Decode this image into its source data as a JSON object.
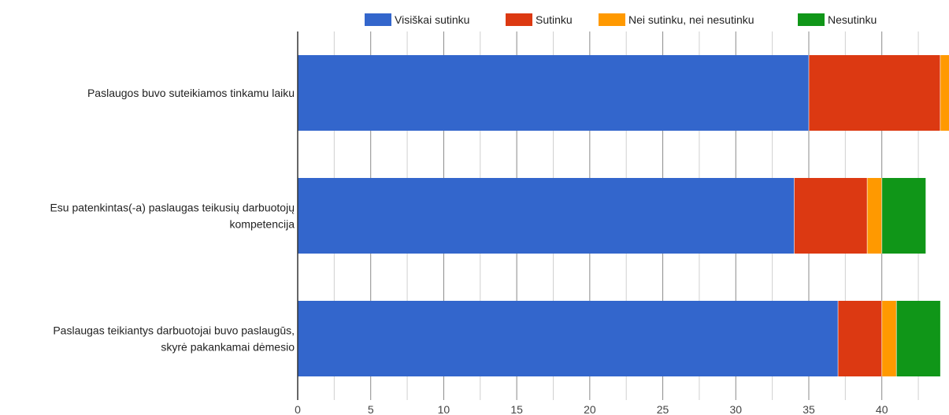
{
  "chart_data": {
    "type": "bar",
    "orientation": "horizontal",
    "stacked": true,
    "categories": [
      [
        "Paslaugos buvo suteikiamos tinkamu laiku"
      ],
      [
        "Esu patenkintas(-a) paslaugas teikusių darbuotojų",
        "kompetencija"
      ],
      [
        "Paslaugas teikiantys darbuotojai buvo paslaugūs,",
        "skyrė pakankamai dėmesio"
      ]
    ],
    "series": [
      {
        "name": "Visiškai sutinku",
        "color": "#3366cc",
        "values": [
          35,
          34,
          37
        ]
      },
      {
        "name": "Sutinku",
        "color": "#dc3912",
        "values": [
          9,
          5,
          3
        ]
      },
      {
        "name": "Nei sutinku, nei nesutinku",
        "color": "#ff9900",
        "values": [
          1,
          1,
          1
        ]
      },
      {
        "name": "Nesutinku",
        "color": "#109618",
        "values": [
          0,
          3,
          3
        ]
      }
    ],
    "xticks": [
      "0",
      "5",
      "10",
      "15",
      "20",
      "25",
      "30",
      "35",
      "40"
    ],
    "xlim": [
      0,
      44.6
    ],
    "grid": true,
    "legend_position": "top"
  }
}
